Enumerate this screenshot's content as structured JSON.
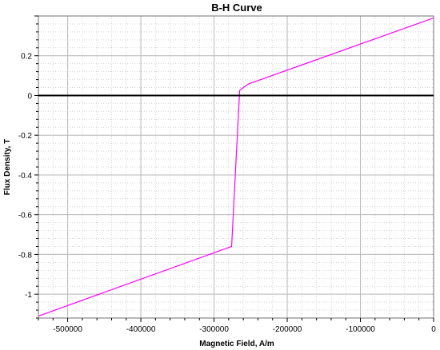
{
  "chart_data": {
    "type": "line",
    "title": "B-H Curve",
    "xlabel": "Magnetic Field, A/m",
    "ylabel": "Flux Density, T",
    "xlim": [
      -540000,
      0
    ],
    "ylim": [
      -1.12,
      0.4
    ],
    "x_ticks": [
      -500000,
      -400000,
      -300000,
      -200000,
      -100000,
      0
    ],
    "y_ticks": [
      0.2,
      0,
      -0.2,
      -0.4,
      -0.6,
      -0.8,
      -1
    ],
    "x_tick_labels": [
      "-500000",
      "-400000",
      "-300000",
      "-200000",
      "-100000",
      "0"
    ],
    "y_tick_labels": [
      "0.2",
      "0",
      "-0.2",
      "-0.4",
      "-0.6",
      "-0.8",
      "-1"
    ],
    "grid": true,
    "series": [
      {
        "color": "#ff00ff",
        "points": [
          [
            -540000,
            -1.11
          ],
          [
            -276000,
            -0.76
          ],
          [
            -265000,
            0.025
          ],
          [
            -260000,
            0.04
          ],
          [
            -252000,
            0.06
          ],
          [
            -240000,
            0.075
          ],
          [
            0,
            0.39
          ]
        ]
      }
    ],
    "zero_line_color": "#000000"
  }
}
